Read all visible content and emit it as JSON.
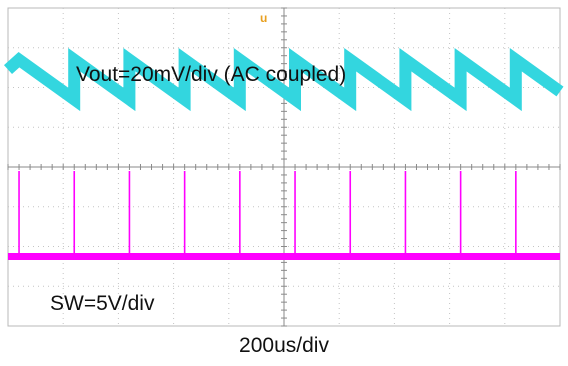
{
  "chart_data": {
    "type": "line",
    "title": "",
    "xlabel": "200us/div",
    "ylabel": "",
    "grid": true,
    "divisions": {
      "horizontal": 10,
      "vertical": 8
    },
    "trigger_marker": "u",
    "series": [
      {
        "name": "Vout=20mV/div (AC coupled)",
        "color": "#33d6df",
        "waveform": "sawtooth ripple",
        "x_div": [
          0.0,
          0.2,
          1.2,
          1.2,
          2.2,
          2.2,
          3.2,
          3.2,
          4.2,
          4.2,
          5.2,
          5.2,
          6.2,
          6.2,
          7.2,
          7.2,
          8.2,
          8.2,
          9.2,
          9.2,
          10.0
        ],
        "y_div": [
          6.45,
          6.7,
          5.7,
          6.7,
          5.7,
          6.7,
          5.7,
          6.7,
          5.7,
          6.7,
          5.7,
          6.7,
          5.7,
          6.7,
          5.7,
          6.7,
          5.7,
          6.7,
          5.7,
          6.7,
          5.9
        ]
      },
      {
        "name": "SW=5V/div",
        "color": "#ff00ff",
        "waveform": "switching pulses",
        "baseline_div": 1.75,
        "pulse_peak_div": 3.9,
        "pulse_x_div": [
          0.2,
          1.2,
          2.2,
          3.2,
          4.2,
          5.2,
          6.2,
          7.2,
          8.2,
          9.2
        ]
      }
    ]
  }
}
